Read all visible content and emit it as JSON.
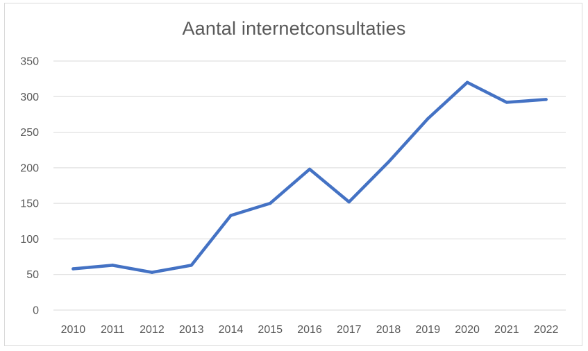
{
  "chart_data": {
    "type": "line",
    "title": "Aantal internetconsultaties",
    "xlabel": "",
    "ylabel": "",
    "categories": [
      "2010",
      "2011",
      "2012",
      "2013",
      "2014",
      "2015",
      "2016",
      "2017",
      "2018",
      "2019",
      "2020",
      "2021",
      "2022"
    ],
    "series": [
      {
        "values": [
          58,
          63,
          53,
          63,
          133,
          150,
          198,
          152,
          208,
          269,
          320,
          292,
          296
        ],
        "color": "#4472c4"
      }
    ],
    "ylim": [
      0,
      350
    ],
    "yticks": [
      0,
      50,
      100,
      150,
      200,
      250,
      300,
      350
    ],
    "grid": true,
    "legend": "none"
  }
}
